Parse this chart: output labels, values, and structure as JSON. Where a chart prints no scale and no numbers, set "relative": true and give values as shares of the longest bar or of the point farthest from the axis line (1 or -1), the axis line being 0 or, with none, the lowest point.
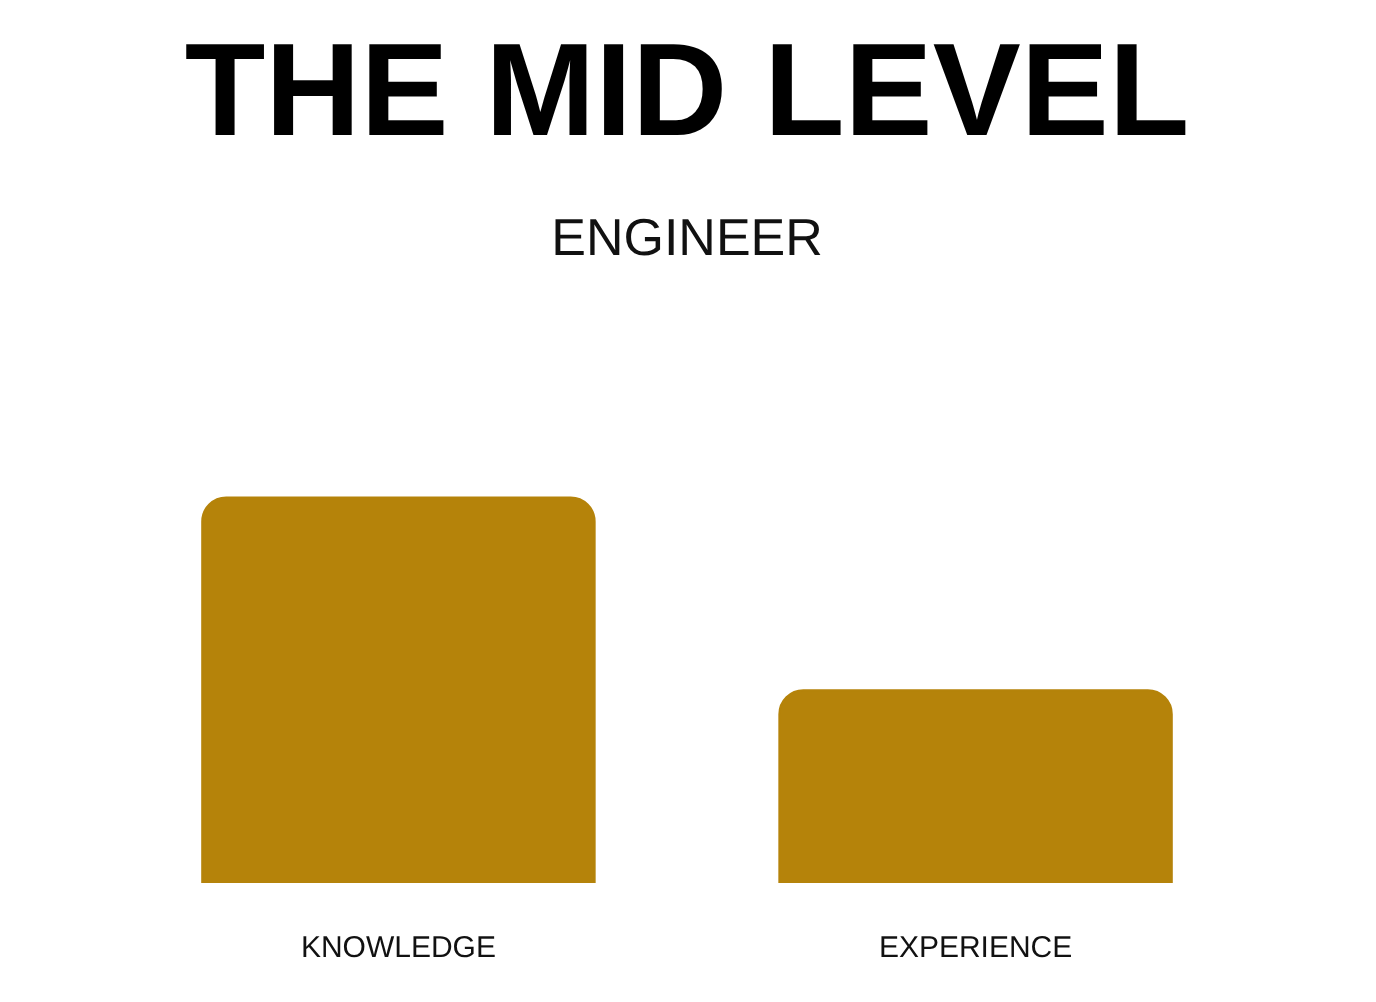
{
  "chart_data": {
    "type": "bar",
    "title": "THE MID LEVEL",
    "subtitle": "ENGINEER",
    "categories": [
      "KNOWLEDGE",
      "EXPERIENCE"
    ],
    "values": [
      1,
      0.5
    ],
    "color": "#b5830a",
    "relative": true
  }
}
